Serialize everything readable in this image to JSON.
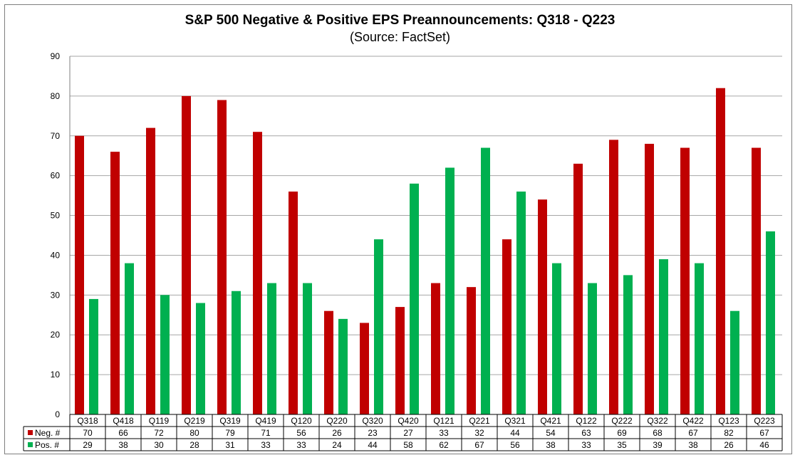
{
  "chart_data": {
    "type": "bar",
    "title": "S&P 500 Negative & Positive EPS Preannouncements: Q318 - Q223",
    "subtitle": "(Source: FactSet)",
    "categories": [
      "Q318",
      "Q418",
      "Q119",
      "Q219",
      "Q319",
      "Q419",
      "Q120",
      "Q220",
      "Q320",
      "Q420",
      "Q121",
      "Q221",
      "Q321",
      "Q421",
      "Q122",
      "Q222",
      "Q322",
      "Q422",
      "Q123",
      "Q223"
    ],
    "series": [
      {
        "name": "Neg. #",
        "color": "#c00000",
        "values": [
          70,
          66,
          72,
          80,
          79,
          71,
          56,
          26,
          23,
          27,
          33,
          32,
          44,
          54,
          63,
          69,
          68,
          67,
          82,
          67
        ]
      },
      {
        "name": "Pos. #",
        "color": "#00b050",
        "values": [
          29,
          38,
          30,
          28,
          31,
          33,
          33,
          24,
          44,
          58,
          62,
          67,
          56,
          38,
          33,
          35,
          39,
          38,
          26,
          46
        ]
      }
    ],
    "ylim": [
      0,
      90
    ],
    "yticks": [
      0,
      10,
      20,
      30,
      40,
      50,
      60,
      70,
      80,
      90
    ],
    "grid": true,
    "legend": "data-table",
    "xlabel": "",
    "ylabel": ""
  }
}
